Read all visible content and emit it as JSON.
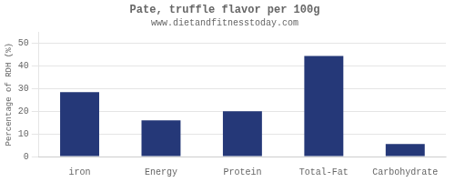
{
  "chart_data": {
    "type": "bar",
    "title": "Pate, truffle flavor per 100g",
    "subtitle": "www.dietandfitnesstoday.com",
    "categories": [
      "iron",
      "Energy",
      "Protein",
      "Total-Fat",
      "Carbohydrate"
    ],
    "values": [
      28.5,
      16.0,
      20.0,
      44.5,
      5.5
    ],
    "color": "#253878",
    "ylabel": "Percentage of RDH (%)",
    "ylim": [
      0,
      55
    ],
    "yticks": [
      0,
      10,
      20,
      30,
      40,
      50
    ],
    "grid": true
  }
}
